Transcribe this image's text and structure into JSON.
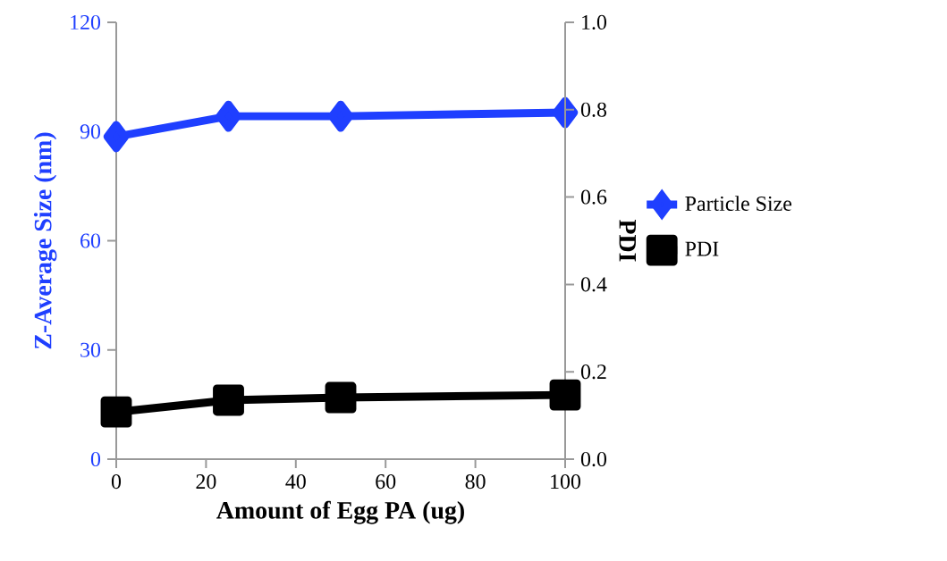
{
  "chart_data": {
    "type": "line",
    "xlabel": "Amount of Egg PA (ug)",
    "ylabel": "Z-Average Size (nm)",
    "y2label": "PDI",
    "x": [
      0,
      25,
      50,
      100
    ],
    "series": [
      {
        "name": "Particle Size",
        "color": "#1f3fff",
        "values": [
          88.6,
          94.2,
          94.2,
          95.2
        ],
        "marker": "diamond"
      },
      {
        "name": "PDI",
        "color": "#000000",
        "values": [
          0.108,
          0.135,
          0.141,
          0.147
        ],
        "marker": "square",
        "axis": "y2"
      }
    ],
    "xlim": [
      0,
      100
    ],
    "xticks": [
      0,
      20,
      40,
      60,
      80,
      100
    ],
    "ylim": [
      0,
      120
    ],
    "yticks": [
      0,
      30,
      60,
      90,
      120
    ],
    "y2lim": [
      0,
      1
    ],
    "y2ticks": [
      {
        "value": 0,
        "label": "0.0"
      },
      {
        "value": 0.2,
        "label": "0.2"
      },
      {
        "value": 0.4,
        "label": "0.4"
      },
      {
        "value": 0.6,
        "label": "0.6"
      },
      {
        "value": 0.8,
        "label": "0.8"
      },
      {
        "value": 1,
        "label": "1.0"
      }
    ],
    "grid": false,
    "legend": "right",
    "line_style": "solid"
  }
}
